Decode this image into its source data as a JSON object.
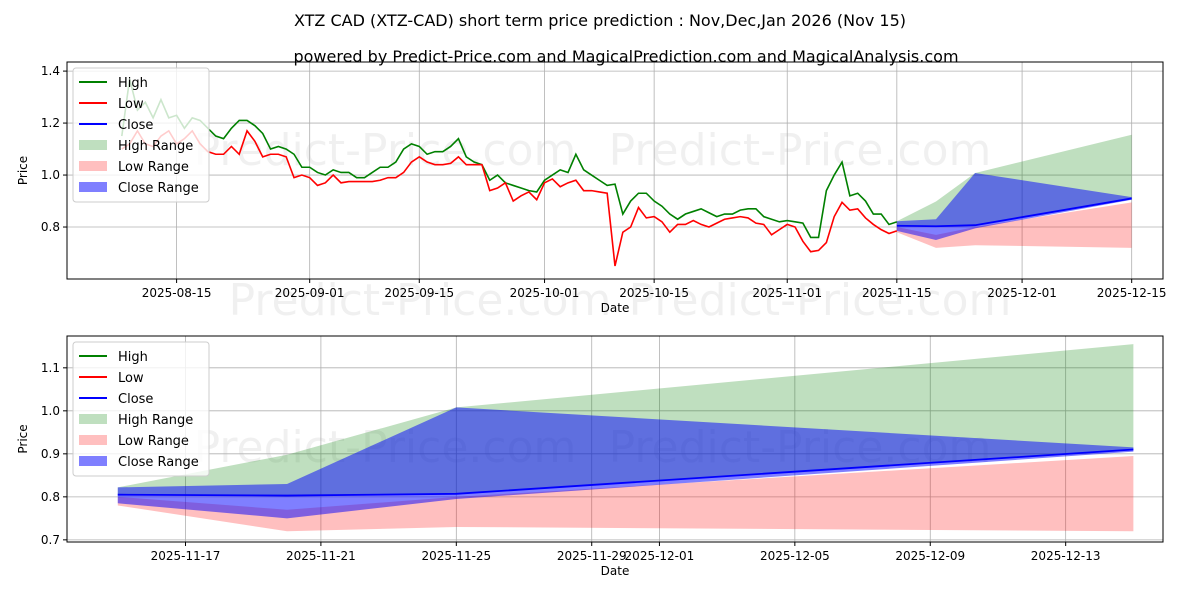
{
  "title": "XTZ CAD (XTZ-CAD) short term price prediction : Nov,Dec,Jan 2026 (Nov 15)",
  "subtitle": "powered by Predict-Price.com and MagicalPrediction.com and MagicalAnalysis.com",
  "watermark": "Predict-Price.com",
  "colors": {
    "high": "#008000",
    "low": "#ff0000",
    "close": "#0000ff",
    "high_range": "#008000",
    "low_range": "#ff0000",
    "close_range": "#0000ff"
  },
  "chart_data": [
    {
      "type": "line",
      "xlabel": "Date",
      "ylabel": "Price",
      "xlim": [
        "2025-08-01",
        "2025-12-19"
      ],
      "ylim": [
        0.6,
        1.435
      ],
      "grid": true,
      "legend_position": "upper-left",
      "legend": [
        "High",
        "Low",
        "Close",
        "High Range",
        "Low Range",
        "Close Range"
      ],
      "xticks": [
        "2025-08-15",
        "2025-09-01",
        "2025-09-15",
        "2025-10-01",
        "2025-10-15",
        "2025-11-01",
        "2025-11-15",
        "2025-12-01",
        "2025-12-15"
      ],
      "yticks": [
        "0.8",
        "1.0",
        "1.2",
        "1.4"
      ],
      "history_start": "2025-08-08",
      "high": [
        1.15,
        1.37,
        1.25,
        1.28,
        1.22,
        1.29,
        1.22,
        1.23,
        1.18,
        1.22,
        1.21,
        1.18,
        1.15,
        1.14,
        1.18,
        1.21,
        1.21,
        1.19,
        1.16,
        1.1,
        1.11,
        1.1,
        1.08,
        1.03,
        1.03,
        1.01,
        1.0,
        1.02,
        1.01,
        1.01,
        0.99,
        0.99,
        1.01,
        1.03,
        1.03,
        1.05,
        1.1,
        1.12,
        1.11,
        1.08,
        1.09,
        1.09,
        1.11,
        1.14,
        1.07,
        1.05,
        1.04,
        0.98,
        1.0,
        0.97,
        0.96,
        0.95,
        0.94,
        0.935,
        0.98,
        1.0,
        1.02,
        1.01,
        1.08,
        1.02,
        1.0,
        0.98,
        0.96,
        0.965,
        0.85,
        0.9,
        0.93,
        0.93,
        0.9,
        0.88,
        0.85,
        0.83,
        0.85,
        0.86,
        0.87,
        0.855,
        0.84,
        0.85,
        0.85,
        0.865,
        0.87,
        0.87,
        0.84,
        0.83,
        0.82,
        0.825,
        0.82,
        0.815,
        0.76,
        0.76,
        0.94,
        1.0,
        1.05,
        0.92,
        0.93,
        0.9,
        0.85,
        0.85,
        0.81,
        0.82
      ],
      "low": [
        1.1,
        1.12,
        1.17,
        1.12,
        1.11,
        1.15,
        1.17,
        1.12,
        1.14,
        1.17,
        1.12,
        1.09,
        1.08,
        1.08,
        1.11,
        1.08,
        1.17,
        1.13,
        1.07,
        1.08,
        1.08,
        1.07,
        0.99,
        1.0,
        0.99,
        0.96,
        0.97,
        1.0,
        0.97,
        0.975,
        0.975,
        0.975,
        0.975,
        0.98,
        0.99,
        0.99,
        1.01,
        1.05,
        1.07,
        1.05,
        1.04,
        1.04,
        1.045,
        1.07,
        1.04,
        1.04,
        1.04,
        0.94,
        0.95,
        0.97,
        0.9,
        0.92,
        0.935,
        0.905,
        0.97,
        0.985,
        0.955,
        0.97,
        0.98,
        0.94,
        0.94,
        0.935,
        0.93,
        0.65,
        0.78,
        0.8,
        0.875,
        0.835,
        0.84,
        0.82,
        0.78,
        0.81,
        0.81,
        0.825,
        0.81,
        0.8,
        0.815,
        0.83,
        0.835,
        0.84,
        0.835,
        0.815,
        0.81,
        0.77,
        0.79,
        0.81,
        0.8,
        0.745,
        0.705,
        0.71,
        0.74,
        0.84,
        0.895,
        0.865,
        0.87,
        0.835,
        0.81,
        0.79,
        0.775,
        0.785
      ],
      "forecast": {
        "dates": [
          "2025-11-15",
          "2025-11-20",
          "2025-11-25",
          "2025-12-15"
        ],
        "close": [
          0.805,
          0.803,
          0.807,
          0.91
        ],
        "high_range": {
          "upper": [
            0.822,
            0.898,
            1.008,
            1.155
          ],
          "lower": [
            0.805,
            0.803,
            0.807,
            0.91
          ]
        },
        "low_range": {
          "upper": [
            0.8,
            0.77,
            0.8,
            0.895
          ],
          "lower": [
            0.78,
            0.72,
            0.73,
            0.72
          ]
        },
        "close_range": {
          "upper": [
            0.822,
            0.83,
            1.008,
            0.915
          ],
          "lower": [
            0.785,
            0.75,
            0.795,
            0.905
          ]
        }
      }
    },
    {
      "type": "line",
      "xlabel": "Date",
      "ylabel": "Price",
      "xlim": [
        "2025-11-13T12:00",
        "2025-12-15T21:00"
      ],
      "ylim": [
        0.695,
        1.174
      ],
      "grid": true,
      "legend_position": "upper-left",
      "legend": [
        "High",
        "Low",
        "Close",
        "High Range",
        "Low Range",
        "Close Range"
      ],
      "xticks": [
        "2025-11-17",
        "2025-11-21",
        "2025-11-25",
        "2025-11-29",
        "2025-12-01",
        "2025-12-05",
        "2025-12-09",
        "2025-12-13"
      ],
      "yticks": [
        "0.7",
        "0.8",
        "0.9",
        "1.0",
        "1.1"
      ],
      "forecast_ref": 0
    }
  ]
}
